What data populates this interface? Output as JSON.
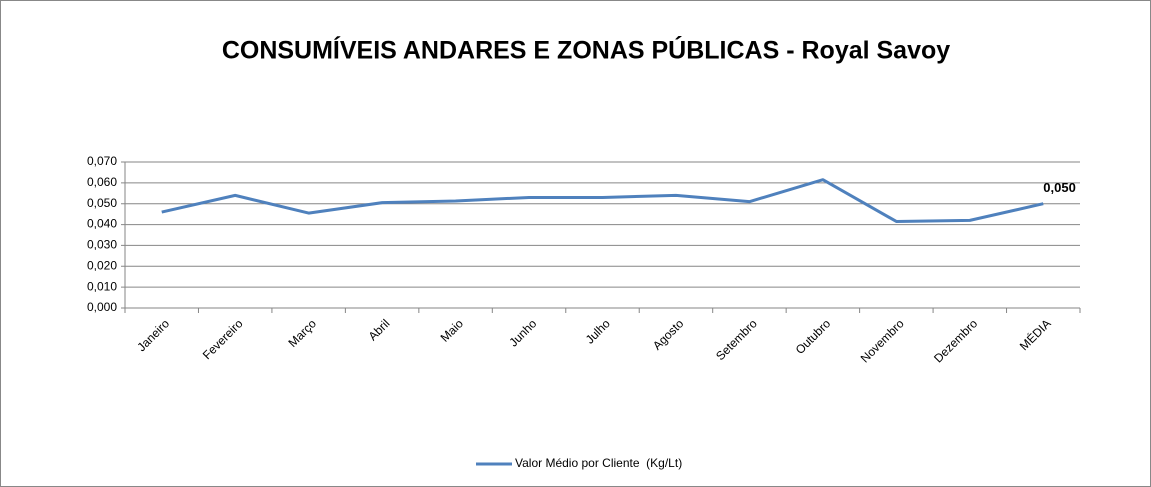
{
  "chart_data": {
    "type": "line",
    "title": "CONSUMÍVEIS ANDARES E ZONAS PÚBLICAS - Royal Savoy",
    "categories": [
      "Janeiro",
      "Fevereiro",
      "Março",
      "Abril",
      "Maio",
      "Junho",
      "Julho",
      "Agosto",
      "Setembro",
      "Outubro",
      "Novembro",
      "Dezembro",
      "MÉDIA"
    ],
    "series": [
      {
        "name": "Valor Médio por Cliente  (Kg/Lt)",
        "color": "#4f81bd",
        "values": [
          0.046,
          0.054,
          0.0455,
          0.0505,
          0.0513,
          0.053,
          0.053,
          0.054,
          0.051,
          0.0615,
          0.0415,
          0.042,
          0.05
        ],
        "value_labels": [
          null,
          null,
          null,
          null,
          null,
          null,
          null,
          null,
          null,
          null,
          null,
          null,
          "0,050"
        ]
      }
    ],
    "ylim": [
      0,
      0.07
    ],
    "yticks": [
      {
        "value": 0,
        "label": "0,000"
      },
      {
        "value": 0.01,
        "label": "0,010"
      },
      {
        "value": 0.02,
        "label": "0,020"
      },
      {
        "value": 0.03,
        "label": "0,030"
      },
      {
        "value": 0.04,
        "label": "0,040"
      },
      {
        "value": 0.05,
        "label": "0,050"
      },
      {
        "value": 0.06,
        "label": "0,060"
      },
      {
        "value": 0.07,
        "label": "0,070"
      }
    ],
    "grid": true,
    "legend": "bottom"
  }
}
